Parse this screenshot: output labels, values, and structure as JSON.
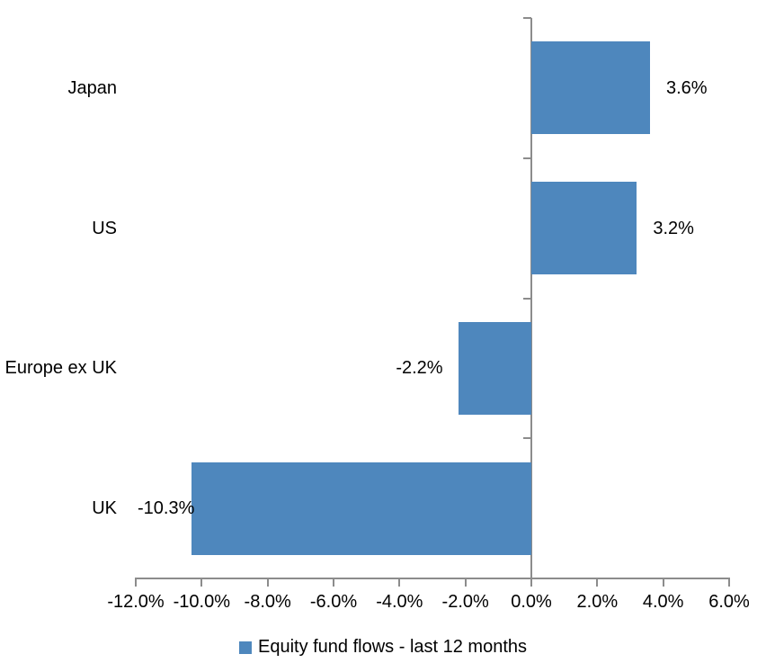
{
  "chart_data": {
    "type": "bar",
    "orientation": "horizontal",
    "title": "",
    "categories": [
      "Japan",
      "US",
      "Europe ex UK",
      "UK"
    ],
    "series": [
      {
        "name": "Equity fund flows - last 12 months",
        "values": [
          3.6,
          3.2,
          -2.2,
          -10.3
        ],
        "data_labels": [
          "3.6%",
          "3.2%",
          "-2.2%",
          "-10.3%"
        ]
      }
    ],
    "xlabel": "",
    "ylabel": "",
    "xlim": [
      -12,
      6
    ],
    "x_tick_step": 2,
    "x_tick_labels": [
      "-12.0%",
      "-10.0%",
      "-8.0%",
      "-6.0%",
      "-4.0%",
      "-2.0%",
      "0.0%",
      "2.0%",
      "4.0%",
      "6.0%"
    ],
    "grid": false,
    "legend_position": "bottom",
    "legend": {
      "label": "Equity fund flows - last 12 months"
    },
    "colors": {
      "bar": "#4E87BD",
      "axis": "#8C8C8C",
      "text": "#000000",
      "background": "#FFFFFF"
    }
  }
}
